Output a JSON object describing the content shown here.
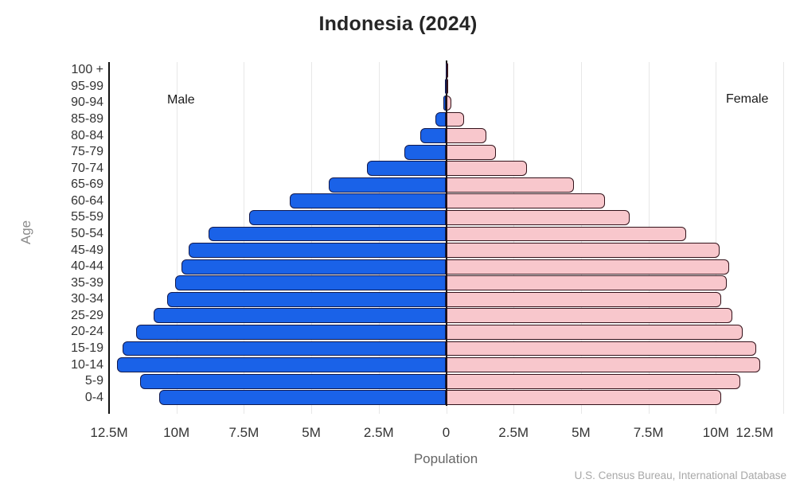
{
  "title": "Indonesia (2024)",
  "labels": {
    "male": "Male",
    "female": "Female",
    "y_axis": "Age",
    "x_axis": "Population",
    "source": "U.S. Census Bureau, International Database"
  },
  "colors": {
    "male_fill": "#1a62e8",
    "male_border": "#121a4e",
    "female_fill": "#f8c7cc",
    "female_border": "#33121a",
    "grid": "#e7e7e7",
    "axis": "#111111",
    "tick_text": "#333333",
    "muted_text": "#8a8a8a",
    "source_text": "#a8a8a8",
    "title_text": "#262626"
  },
  "chart_data": {
    "type": "bar",
    "subtype": "population-pyramid",
    "title": "Indonesia (2024)",
    "xlabel": "Population",
    "ylabel": "Age",
    "unit": "millions of people",
    "orientation": "horizontal-mirrored",
    "grid": true,
    "x_range_m": [
      -12.5,
      12.5
    ],
    "x_ticks": [
      "12.5M",
      "10M",
      "7.5M",
      "5M",
      "2.5M",
      "0",
      "2.5M",
      "5M",
      "7.5M",
      "10M",
      "12.5M"
    ],
    "categories_top_to_bottom": [
      "100 +",
      "95-99",
      "90-94",
      "85-89",
      "80-84",
      "75-79",
      "70-74",
      "65-69",
      "60-64",
      "55-59",
      "50-54",
      "45-49",
      "40-44",
      "35-39",
      "30-34",
      "25-29",
      "20-24",
      "15-19",
      "10-14",
      "5-9",
      "0-4"
    ],
    "series": [
      {
        "name": "Male",
        "side": "left",
        "values_millions": [
          0.005,
          0.03,
          0.11,
          0.4,
          0.95,
          1.55,
          2.95,
          4.35,
          5.8,
          7.3,
          8.8,
          9.55,
          9.8,
          10.05,
          10.35,
          10.85,
          11.5,
          12.0,
          12.2,
          11.35,
          10.65
        ]
      },
      {
        "name": "Female",
        "side": "right",
        "values_millions": [
          0.015,
          0.06,
          0.2,
          0.65,
          1.5,
          1.85,
          3.0,
          4.75,
          5.9,
          6.8,
          8.9,
          10.15,
          10.5,
          10.4,
          10.2,
          10.6,
          11.0,
          11.5,
          11.65,
          10.9,
          10.2
        ]
      }
    ]
  }
}
